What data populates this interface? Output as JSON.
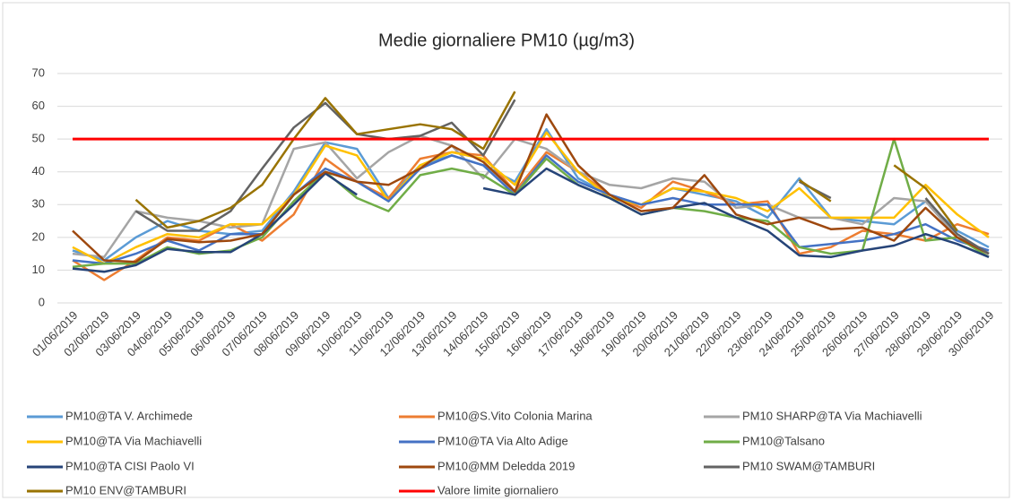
{
  "chart_data": {
    "type": "line",
    "title": "Medie giornaliere PM10 (µg/m3)",
    "categories": [
      "01/06/2019",
      "02/06/2019",
      "03/06/2019",
      "04/06/2019",
      "05/06/2019",
      "06/06/2019",
      "07/06/2019",
      "08/06/2019",
      "09/06/2019",
      "10/06/2019",
      "11/06/2019",
      "12/06/2019",
      "13/06/2019",
      "14/06/2019",
      "15/06/2019",
      "16/06/2019",
      "17/06/2019",
      "18/06/2019",
      "19/06/2019",
      "20/06/2019",
      "21/06/2019",
      "22/06/2019",
      "23/06/2019",
      "24/06/2019",
      "25/06/2019",
      "26/06/2019",
      "27/06/2019",
      "28/06/2019",
      "29/06/2019",
      "30/06/2019"
    ],
    "ylim": [
      0,
      70
    ],
    "yticks": [
      0,
      10,
      20,
      30,
      40,
      50,
      60,
      70
    ],
    "grid": true,
    "series": [
      {
        "name": "PM10@TA V. Archimede",
        "color": "#5b9bd5",
        "values": [
          16,
          13,
          20,
          25,
          22,
          21,
          22,
          34,
          49,
          47,
          32,
          42,
          45,
          42,
          37,
          53,
          38,
          33,
          30,
          35,
          33,
          31,
          26,
          38,
          26,
          25,
          24,
          31,
          22,
          17
        ]
      },
      {
        "name": "PM10@S.Vito Colonia Marina",
        "color": "#ed7d31",
        "values": [
          13,
          7,
          13,
          20,
          19,
          24,
          19,
          27,
          44,
          37,
          32,
          44,
          46,
          45,
          34,
          46,
          40,
          33,
          29,
          37,
          34,
          30,
          31,
          15,
          17,
          22,
          21,
          19,
          24,
          21
        ]
      },
      {
        "name": "PM10 SHARP@TA Via Machiavelli",
        "color": "#a5a5a5",
        "values": [
          15,
          14,
          28,
          26,
          25,
          23,
          24,
          47,
          49,
          38,
          46,
          51,
          48,
          38,
          50,
          47,
          40,
          36,
          35,
          38,
          37,
          29,
          30,
          26,
          26,
          24,
          32,
          31,
          20,
          15
        ]
      },
      {
        "name": "PM10@TA Via Machiavelli",
        "color": "#ffc000",
        "values": [
          17,
          12,
          17,
          21,
          20,
          24,
          24,
          33,
          48,
          45,
          31,
          42,
          46,
          44,
          36,
          52,
          40,
          32,
          30,
          35,
          34,
          32,
          28,
          35,
          26,
          26,
          26,
          36,
          27,
          20
        ]
      },
      {
        "name": "PM10@TA Via Alto Adige",
        "color": "#4472c4",
        "values": [
          13,
          12,
          15,
          19,
          16,
          21,
          21,
          33,
          41,
          37,
          31,
          41,
          45,
          42,
          33,
          45,
          37,
          33,
          30,
          32,
          30,
          30,
          30,
          17,
          18,
          19,
          21,
          24,
          19,
          16
        ]
      },
      {
        "name": "PM10@Talsano",
        "color": "#70ad47",
        "values": [
          11,
          12,
          12,
          17,
          15,
          16,
          20,
          31,
          40,
          32,
          28,
          39,
          41,
          39,
          33,
          44,
          36,
          32,
          27,
          29,
          28,
          26,
          25,
          17,
          15,
          16,
          50,
          19,
          20,
          14
        ]
      },
      {
        "name": "PM10@TA CISI Paolo VI",
        "color": "#264478",
        "values": [
          10.5,
          9.5,
          11.5,
          16.5,
          15.5,
          15.5,
          21,
          30,
          39.5,
          33,
          null,
          null,
          null,
          35,
          33,
          41,
          36,
          32,
          27,
          29,
          30.5,
          26,
          22,
          14.5,
          14,
          16,
          17.5,
          21,
          18,
          14
        ]
      },
      {
        "name": "PM10@MM Deledda 2019",
        "color": "#9e480e",
        "values": [
          22,
          13,
          12.5,
          19.5,
          18.5,
          19,
          21,
          33,
          40,
          37,
          36,
          41,
          48,
          43,
          34,
          57.5,
          42,
          33,
          28,
          29,
          39,
          27,
          24,
          26,
          22.5,
          23,
          19,
          29,
          20,
          15
        ]
      },
      {
        "name": "PM10 SWAM@TAMBURI",
        "color": "#636363",
        "values": [
          null,
          null,
          28,
          22,
          22,
          28,
          41,
          53.5,
          61,
          51.5,
          50,
          51,
          55,
          45,
          62,
          null,
          null,
          null,
          null,
          null,
          null,
          null,
          null,
          37,
          32,
          null,
          null,
          32,
          21,
          15
        ]
      },
      {
        "name": "PM10 ENV@TAMBURI",
        "color": "#997300",
        "values": [
          null,
          null,
          31.5,
          23,
          25,
          29,
          36,
          50,
          62.5,
          51.5,
          53,
          54.5,
          53,
          47,
          64.5,
          null,
          null,
          null,
          null,
          null,
          null,
          null,
          null,
          37.5,
          31,
          null,
          42,
          35,
          22,
          null
        ]
      },
      {
        "name": "Valore limite giornaliero",
        "color": "#ff0000",
        "values": [
          50,
          50,
          50,
          50,
          50,
          50,
          50,
          50,
          50,
          50,
          50,
          50,
          50,
          50,
          50,
          50,
          50,
          50,
          50,
          50,
          50,
          50,
          50,
          50,
          50,
          50,
          50,
          50,
          50,
          50
        ]
      }
    ]
  }
}
